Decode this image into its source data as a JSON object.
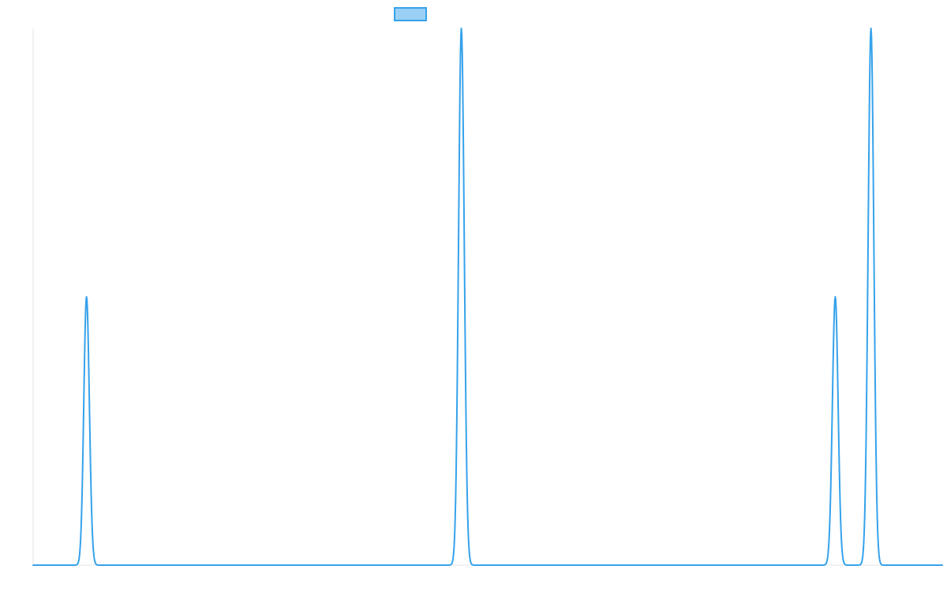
{
  "chart_data": {
    "type": "line",
    "title": "",
    "xlabel": "",
    "ylabel": "",
    "grid": false,
    "legend": {
      "position": "top-center",
      "entries": [
        {
          "label": "",
          "color": "#36a2eb",
          "fill": "#9ad0f5"
        }
      ]
    },
    "xlim": [
      0,
      1
    ],
    "ylim": [
      0,
      1
    ],
    "series": [
      {
        "color": "#36a2eb",
        "points": [
          {
            "x": 0.0,
            "y": 0.0
          },
          {
            "x": 0.04,
            "y": 0.0
          },
          {
            "x": 0.0587,
            "y": 0.5
          },
          {
            "x": 0.0783,
            "y": 0.0
          },
          {
            "x": 0.4518,
            "y": 0.0
          },
          {
            "x": 0.471,
            "y": 1.0
          },
          {
            "x": 0.491,
            "y": 0.0
          },
          {
            "x": 0.8626,
            "y": 0.0
          },
          {
            "x": 0.8823,
            "y": 0.5
          },
          {
            "x": 0.9018,
            "y": 0.0
          },
          {
            "x": 0.9216,
            "y": 1.0
          },
          {
            "x": 0.9412,
            "y": 0.0
          },
          {
            "x": 1.0,
            "y": 0.0
          }
        ]
      }
    ]
  }
}
